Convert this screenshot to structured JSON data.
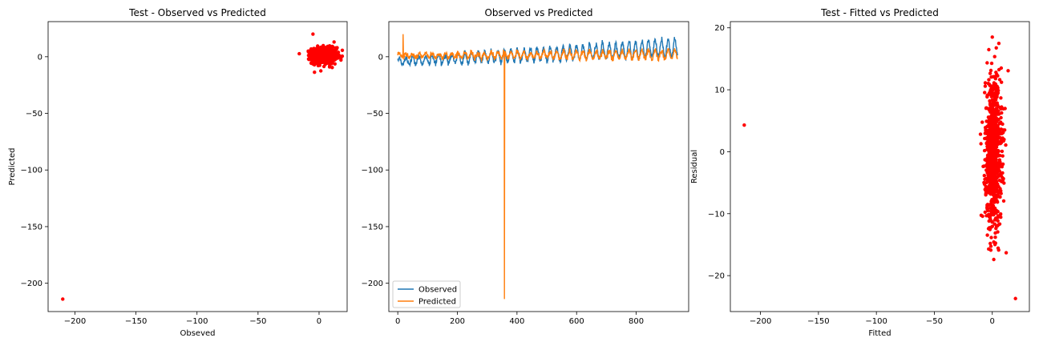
{
  "chart_data": [
    {
      "type": "scatter",
      "title": "Test - Observed vs Predicted",
      "xlabel": "Obseved",
      "ylabel": "Predicted",
      "xlim": [
        -222,
        23
      ],
      "ylim": [
        -225,
        31
      ],
      "xticks": [
        -200,
        -150,
        -100,
        -50,
        0
      ],
      "yticks": [
        -200,
        -150,
        -100,
        -50,
        0
      ],
      "grid": false,
      "color": "#ff0000",
      "outliers": [
        {
          "x": -210,
          "y": -214
        },
        {
          "x": -5,
          "y": 20
        }
      ],
      "cluster": {
        "x_center": 4,
        "y_center": 1,
        "x_spread": 5,
        "y_spread": 3.5,
        "count": 900
      }
    },
    {
      "type": "line",
      "title": "Observed vs Predicted",
      "xlabel": "",
      "ylabel": "",
      "xlim": [
        -30,
        976
      ],
      "ylim": [
        -225,
        31
      ],
      "xticks": [
        0,
        200,
        400,
        600,
        800
      ],
      "yticks": [
        -200,
        -150,
        -100,
        -50,
        0
      ],
      "legend_position": "lower-left",
      "series": [
        {
          "name": "Observed",
          "color": "#1f77b4",
          "n": 940,
          "start_level": -4,
          "end_level": 8,
          "amplitude": 8,
          "period": 22
        },
        {
          "name": "Predicted",
          "color": "#ff7f0e",
          "n": 940,
          "start_level": 1,
          "end_level": 2,
          "amplitude": 4,
          "period": 22,
          "spikes": [
            {
              "x": 18,
              "y": 20
            },
            {
              "x": 358,
              "y": -214
            }
          ]
        }
      ]
    },
    {
      "type": "scatter",
      "title": "Test - Fitted vs Predicted",
      "xlabel": "Fitted",
      "ylabel": "Residual",
      "xlim": [
        -226,
        32
      ],
      "ylim": [
        -25.8,
        21
      ],
      "xticks": [
        -200,
        -150,
        -100,
        -50,
        0
      ],
      "yticks": [
        -20,
        -10,
        0,
        10,
        20
      ],
      "grid": false,
      "color": "#ff0000",
      "outliers": [
        {
          "x": -214,
          "y": 4.3
        },
        {
          "x": 20,
          "y": -23.7
        },
        {
          "x": 0,
          "y": 18.5
        },
        {
          "x": 12,
          "y": -16.3
        }
      ],
      "cluster": {
        "x_center": 1,
        "y_center": 0,
        "x_spread": 3.5,
        "y_spread": 6,
        "count": 900
      }
    }
  ]
}
